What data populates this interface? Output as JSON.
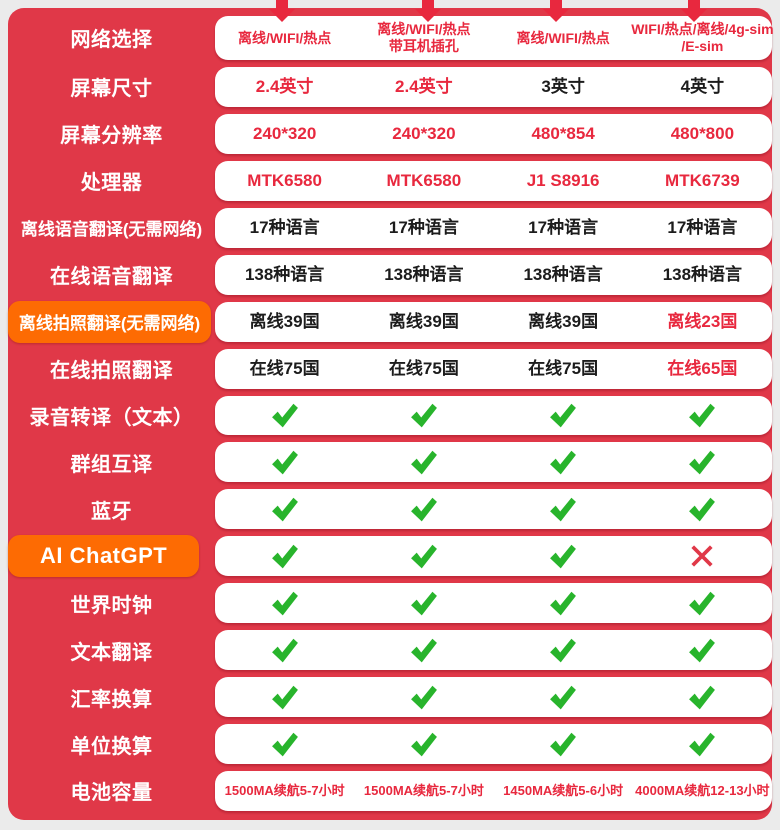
{
  "colors": {
    "page_background": "#ebebeb",
    "panel_red": "#e03848",
    "accent_text_red": "#e8283e",
    "highlight_orange": "#fd6b03",
    "check_green": "#28b42c",
    "value_black": "#1c1c1c"
  },
  "table": {
    "column_count": 4,
    "rows": [
      {
        "label": "网络选择",
        "highlight": false,
        "cells": [
          {
            "kind": "text",
            "text": "离线/WIFI/热点",
            "color": "red"
          },
          {
            "kind": "text",
            "text": "离线/WIFI/热点\n带耳机插孔",
            "color": "red"
          },
          {
            "kind": "text",
            "text": "离线/WIFI/热点",
            "color": "red"
          },
          {
            "kind": "text",
            "text": "WIFI/热点/离线/4g-sim\n/E-sim",
            "color": "red"
          }
        ]
      },
      {
        "label": "屏幕尺寸",
        "highlight": false,
        "cells": [
          {
            "kind": "text",
            "text": "2.4英寸",
            "color": "red"
          },
          {
            "kind": "text",
            "text": "2.4英寸",
            "color": "red"
          },
          {
            "kind": "text",
            "text": "3英寸",
            "color": "black"
          },
          {
            "kind": "text",
            "text": "4英寸",
            "color": "black"
          }
        ]
      },
      {
        "label": "屏幕分辨率",
        "highlight": false,
        "cells": [
          {
            "kind": "text",
            "text": "240*320",
            "color": "red"
          },
          {
            "kind": "text",
            "text": "240*320",
            "color": "red"
          },
          {
            "kind": "text",
            "text": "480*854",
            "color": "red"
          },
          {
            "kind": "text",
            "text": "480*800",
            "color": "red"
          }
        ]
      },
      {
        "label": "处理器",
        "highlight": false,
        "cells": [
          {
            "kind": "text",
            "text": "MTK6580",
            "color": "red"
          },
          {
            "kind": "text",
            "text": "MTK6580",
            "color": "red"
          },
          {
            "kind": "text",
            "text": "J1 S8916",
            "color": "red"
          },
          {
            "kind": "text",
            "text": "MTK6739",
            "color": "red"
          }
        ]
      },
      {
        "label": "离线语音翻译(无需网络)",
        "highlight": false,
        "cells": [
          {
            "kind": "text",
            "text": "17种语言",
            "color": "black"
          },
          {
            "kind": "text",
            "text": "17种语言",
            "color": "black"
          },
          {
            "kind": "text",
            "text": "17种语言",
            "color": "black"
          },
          {
            "kind": "text",
            "text": "17种语言",
            "color": "black"
          }
        ]
      },
      {
        "label": "在线语音翻译",
        "highlight": false,
        "cells": [
          {
            "kind": "text",
            "text": "138种语言",
            "color": "black"
          },
          {
            "kind": "text",
            "text": "138种语言",
            "color": "black"
          },
          {
            "kind": "text",
            "text": "138种语言",
            "color": "black"
          },
          {
            "kind": "text",
            "text": "138种语言",
            "color": "black"
          }
        ]
      },
      {
        "label": "离线拍照翻译(无需网络)",
        "highlight": true,
        "cells": [
          {
            "kind": "text",
            "text": "离线39国",
            "color": "black"
          },
          {
            "kind": "text",
            "text": "离线39国",
            "color": "black"
          },
          {
            "kind": "text",
            "text": "离线39国",
            "color": "black"
          },
          {
            "kind": "text",
            "text": "离线23国",
            "color": "red"
          }
        ]
      },
      {
        "label": "在线拍照翻译",
        "highlight": false,
        "cells": [
          {
            "kind": "text",
            "text": "在线75国",
            "color": "black"
          },
          {
            "kind": "text",
            "text": "在线75国",
            "color": "black"
          },
          {
            "kind": "text",
            "text": "在线75国",
            "color": "black"
          },
          {
            "kind": "text",
            "text": "在线65国",
            "color": "red"
          }
        ]
      },
      {
        "label": "录音转译（文本）",
        "highlight": false,
        "cells": [
          {
            "kind": "check"
          },
          {
            "kind": "check"
          },
          {
            "kind": "check"
          },
          {
            "kind": "check"
          }
        ]
      },
      {
        "label": "群组互译",
        "highlight": false,
        "cells": [
          {
            "kind": "check"
          },
          {
            "kind": "check"
          },
          {
            "kind": "check"
          },
          {
            "kind": "check"
          }
        ]
      },
      {
        "label": "蓝牙",
        "highlight": false,
        "cells": [
          {
            "kind": "check"
          },
          {
            "kind": "check"
          },
          {
            "kind": "check"
          },
          {
            "kind": "check"
          }
        ]
      },
      {
        "label": "AI ChatGPT",
        "highlight": true,
        "cells": [
          {
            "kind": "check"
          },
          {
            "kind": "check"
          },
          {
            "kind": "check"
          },
          {
            "kind": "cross"
          }
        ]
      },
      {
        "label": "世界时钟",
        "highlight": false,
        "cells": [
          {
            "kind": "check"
          },
          {
            "kind": "check"
          },
          {
            "kind": "check"
          },
          {
            "kind": "check"
          }
        ]
      },
      {
        "label": "文本翻译",
        "highlight": false,
        "cells": [
          {
            "kind": "check"
          },
          {
            "kind": "check"
          },
          {
            "kind": "check"
          },
          {
            "kind": "check"
          }
        ]
      },
      {
        "label": "汇率换算",
        "highlight": false,
        "cells": [
          {
            "kind": "check"
          },
          {
            "kind": "check"
          },
          {
            "kind": "check"
          },
          {
            "kind": "check"
          }
        ]
      },
      {
        "label": "单位换算",
        "highlight": false,
        "cells": [
          {
            "kind": "check"
          },
          {
            "kind": "check"
          },
          {
            "kind": "check"
          },
          {
            "kind": "check"
          }
        ]
      },
      {
        "label": "电池容量",
        "highlight": false,
        "cells": [
          {
            "kind": "text",
            "text": "1500MA续航5-7小时",
            "color": "red"
          },
          {
            "kind": "text",
            "text": "1500MA续航5-7小时",
            "color": "red"
          },
          {
            "kind": "text",
            "text": "1450MA续航5-6小时",
            "color": "red"
          },
          {
            "kind": "text",
            "text": "4000MA续航12-13小时",
            "color": "red"
          }
        ]
      }
    ]
  }
}
